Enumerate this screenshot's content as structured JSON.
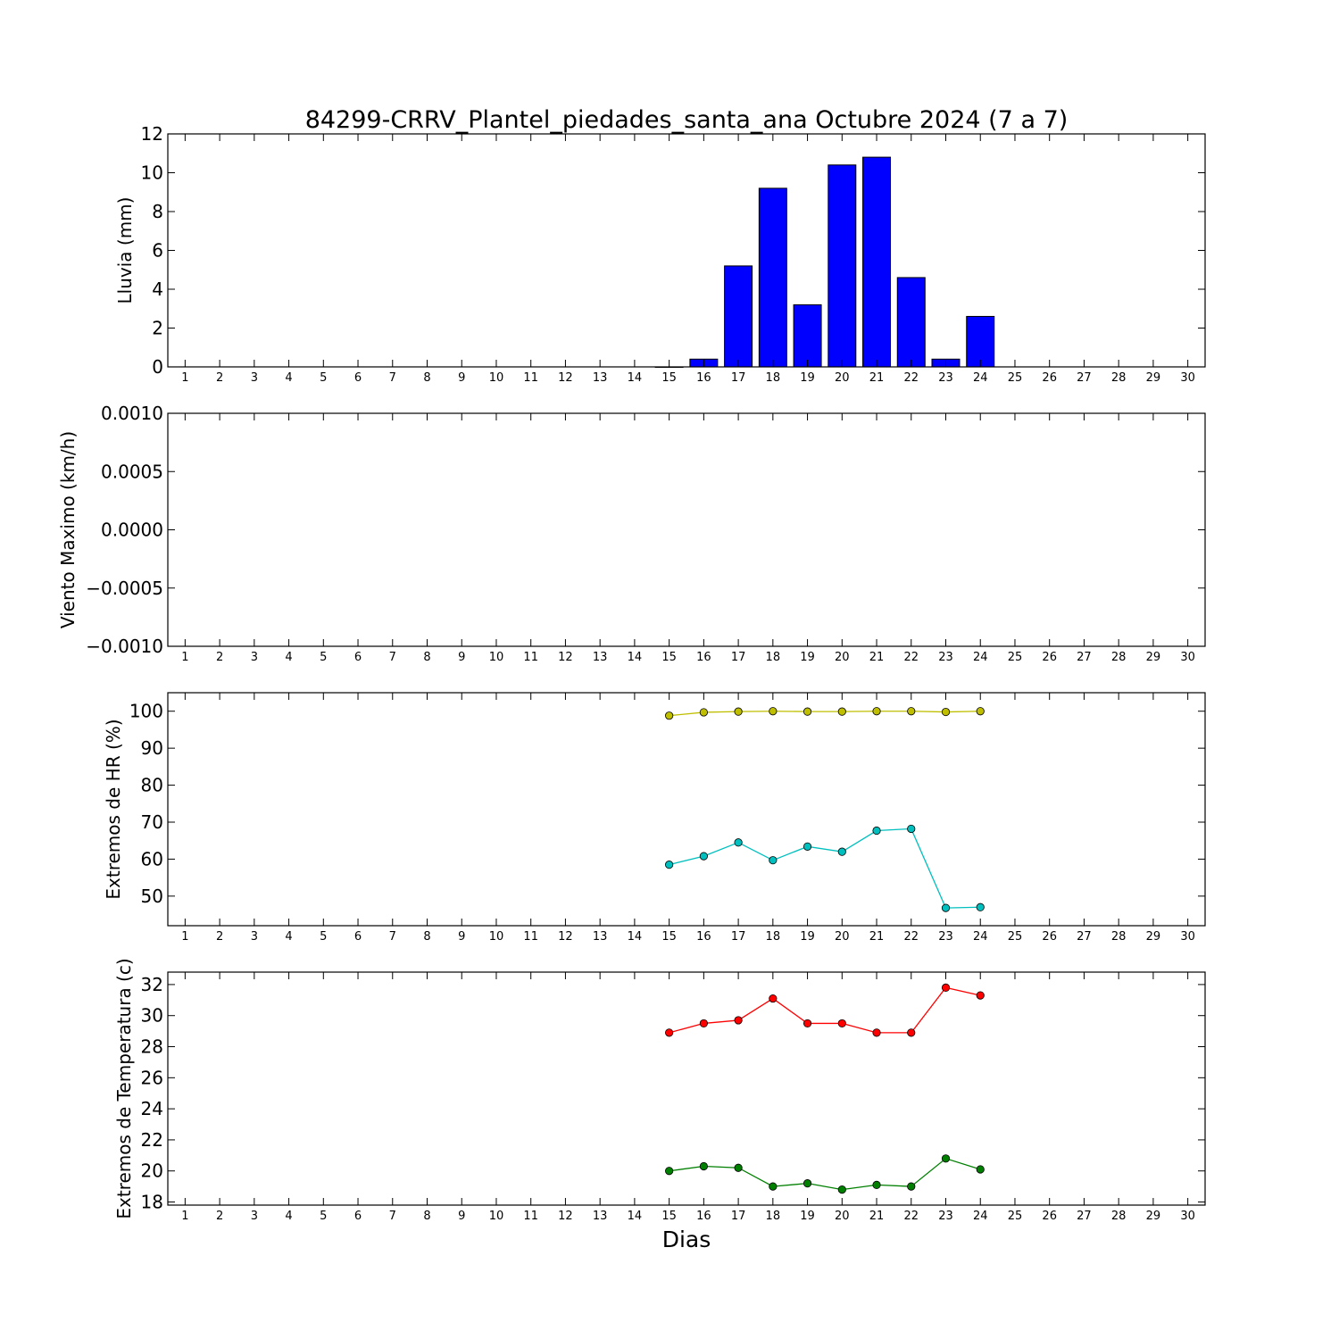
{
  "figure": {
    "title": "84299-CRRV_Plantel_piedades_santa_ana Octubre 2024  (7 a 7)",
    "xlabel": "Dias"
  },
  "chart_data": [
    {
      "type": "bar",
      "ylabel": "Lluvia (mm)",
      "xlim": [
        0.5,
        30.5
      ],
      "ylim": [
        0,
        12
      ],
      "yticks": [
        0,
        2,
        4,
        6,
        8,
        10,
        12
      ],
      "ytick_labels": [
        "0",
        "2",
        "4",
        "6",
        "8",
        "10",
        "12"
      ],
      "xticks": [
        1,
        2,
        3,
        4,
        5,
        6,
        7,
        8,
        9,
        10,
        11,
        12,
        13,
        14,
        15,
        16,
        17,
        18,
        19,
        20,
        21,
        22,
        23,
        24,
        25,
        26,
        27,
        28,
        29,
        30
      ],
      "grid": false,
      "series": [
        {
          "color": "#0000ff",
          "x": [
            15,
            16,
            17,
            18,
            19,
            20,
            21,
            22,
            23,
            24
          ],
          "values": [
            0.0,
            0.4,
            5.2,
            9.2,
            3.2,
            10.4,
            10.8,
            4.6,
            0.4,
            2.6
          ]
        }
      ]
    },
    {
      "type": "line",
      "ylabel": "Viento Maximo (km/h)",
      "xlim": [
        0.5,
        30.5
      ],
      "ylim": [
        -0.001,
        0.001
      ],
      "yticks": [
        -0.001,
        -0.0005,
        0.0,
        0.0005,
        0.001
      ],
      "ytick_labels": [
        "−0.0010",
        "−0.0005",
        "0.0000",
        "0.0005",
        "0.0010"
      ],
      "xticks": [
        1,
        2,
        3,
        4,
        5,
        6,
        7,
        8,
        9,
        10,
        11,
        12,
        13,
        14,
        15,
        16,
        17,
        18,
        19,
        20,
        21,
        22,
        23,
        24,
        25,
        26,
        27,
        28,
        29,
        30
      ],
      "grid": false,
      "series": []
    },
    {
      "type": "line",
      "ylabel": "Extremos de HR (%)",
      "xlim": [
        0.5,
        30.5
      ],
      "ylim": [
        42,
        105
      ],
      "yticks": [
        50,
        60,
        70,
        80,
        90,
        100
      ],
      "ytick_labels": [
        "50",
        "60",
        "70",
        "80",
        "90",
        "100"
      ],
      "xticks": [
        1,
        2,
        3,
        4,
        5,
        6,
        7,
        8,
        9,
        10,
        11,
        12,
        13,
        14,
        15,
        16,
        17,
        18,
        19,
        20,
        21,
        22,
        23,
        24,
        25,
        26,
        27,
        28,
        29,
        30
      ],
      "grid": false,
      "series": [
        {
          "color": "#bfbf00",
          "x": [
            15,
            16,
            17,
            18,
            19,
            20,
            21,
            22,
            23,
            24
          ],
          "values": [
            98.8,
            99.7,
            99.9,
            100.0,
            99.9,
            99.9,
            100.0,
            100.0,
            99.8,
            100.0
          ]
        },
        {
          "color": "#00bfbf",
          "x": [
            15,
            16,
            17,
            18,
            19,
            20,
            21,
            22,
            23,
            24
          ],
          "values": [
            58.5,
            60.8,
            64.5,
            59.7,
            63.4,
            62.0,
            67.7,
            68.2,
            46.8,
            47.0
          ]
        }
      ]
    },
    {
      "type": "line",
      "ylabel": "Extremos de Temperatura (c)",
      "xlim": [
        0.5,
        30.5
      ],
      "ylim": [
        17.8,
        32.8
      ],
      "yticks": [
        18,
        20,
        22,
        24,
        26,
        28,
        30,
        32
      ],
      "ytick_labels": [
        "18",
        "20",
        "22",
        "24",
        "26",
        "28",
        "30",
        "32"
      ],
      "xticks": [
        1,
        2,
        3,
        4,
        5,
        6,
        7,
        8,
        9,
        10,
        11,
        12,
        13,
        14,
        15,
        16,
        17,
        18,
        19,
        20,
        21,
        22,
        23,
        24,
        25,
        26,
        27,
        28,
        29,
        30
      ],
      "grid": false,
      "series": [
        {
          "color": "#ff0000",
          "x": [
            15,
            16,
            17,
            18,
            19,
            20,
            21,
            22,
            23,
            24
          ],
          "values": [
            28.9,
            29.5,
            29.7,
            31.1,
            29.5,
            29.5,
            28.9,
            28.9,
            31.8,
            31.3
          ]
        },
        {
          "color": "#008000",
          "x": [
            15,
            16,
            17,
            18,
            19,
            20,
            21,
            22,
            23,
            24
          ],
          "values": [
            20.0,
            20.3,
            20.2,
            19.0,
            19.2,
            18.8,
            19.1,
            19.0,
            20.8,
            20.1
          ]
        }
      ]
    }
  ]
}
